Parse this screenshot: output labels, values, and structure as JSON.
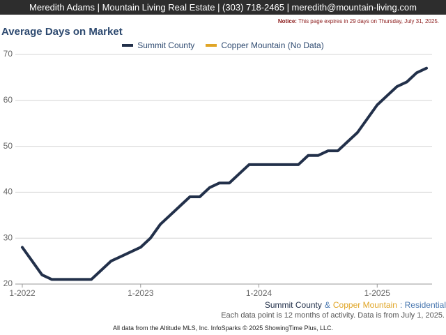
{
  "header": {
    "text": "Meredith Adams | Mountain Living Real Estate | (303) 718-2465 | meredith@mountain-living.com"
  },
  "notice": {
    "label": "Notice:",
    "text": "This page expires in 29 days on Thursday, July 31, 2025."
  },
  "chart_data": {
    "type": "line",
    "title": "Average Days on Market",
    "categories": [
      "1-2022",
      null,
      null,
      null,
      null,
      null,
      null,
      null,
      null,
      null,
      null,
      null,
      "1-2023",
      null,
      null,
      null,
      null,
      null,
      null,
      null,
      null,
      null,
      null,
      null,
      "1-2024",
      null,
      null,
      null,
      null,
      null,
      null,
      null,
      null,
      null,
      null,
      null,
      "1-2025",
      null,
      null,
      null,
      null,
      null
    ],
    "series": [
      {
        "name": "Summit County",
        "color": "#22304a",
        "values": [
          28,
          25,
          22,
          21,
          21,
          21,
          21,
          21,
          23,
          25,
          26,
          27,
          28,
          30,
          33,
          35,
          37,
          39,
          39,
          41,
          42,
          42,
          44,
          46,
          46,
          46,
          46,
          46,
          46,
          48,
          48,
          49,
          49,
          51,
          53,
          56,
          59,
          61,
          63,
          64,
          66,
          67
        ]
      },
      {
        "name": "Copper Mountain (No Data)",
        "color": "#e0a526",
        "values": [
          null,
          null,
          null,
          null,
          null,
          null,
          null,
          null,
          null,
          null,
          null,
          null,
          null,
          null,
          null,
          null,
          null,
          null,
          null,
          null,
          null,
          null,
          null,
          null,
          null,
          null,
          null,
          null,
          null,
          null,
          null,
          null,
          null,
          null,
          null,
          null,
          null,
          null,
          null,
          null,
          null,
          null
        ]
      }
    ],
    "ylim": [
      20,
      70
    ],
    "yticks": [
      20,
      30,
      40,
      50,
      60,
      70
    ],
    "grid": true,
    "legend": "top",
    "caption": [
      {
        "text": "Summit County",
        "color": "#22304a"
      },
      {
        "text": "&",
        "color": "#4a78b0"
      },
      {
        "text": "Copper Mountain",
        "color": "#e0a526"
      },
      {
        "text": ": Residential",
        "color": "#4a78b0"
      }
    ],
    "note": "Each data point is 12 months of activity. Data is from July 1, 2025."
  },
  "footer": {
    "text": "All data from the Altitude MLS, Inc. InfoSparks © 2025 ShowingTime Plus, LLC."
  }
}
